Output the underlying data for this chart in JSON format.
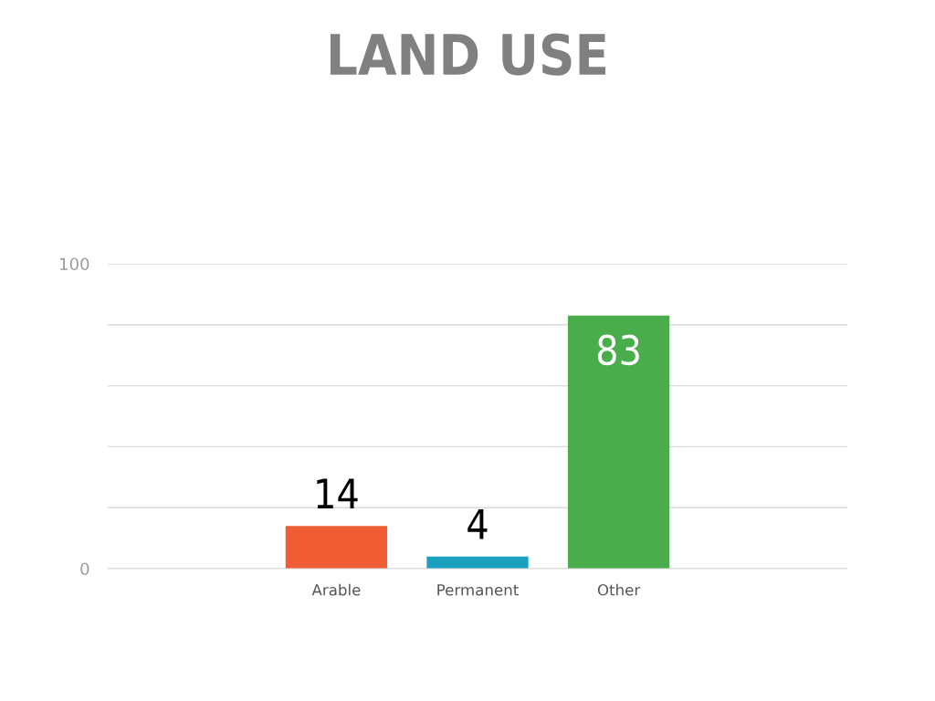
{
  "chart_data": {
    "type": "bar",
    "title": "LAND USE",
    "categories": [
      null,
      "Arable",
      "Permanent",
      "Other",
      null
    ],
    "values": [
      null,
      14,
      4,
      83,
      null
    ],
    "colors": [
      "#f05c33",
      "#f05c33",
      "#1aa1bf",
      "#4aad4b",
      "#4aad4b"
    ],
    "ylim": [
      0,
      100
    ],
    "yticks": [
      0,
      {
        "value": 20,
        "label": null
      },
      {
        "value": 40,
        "label": null
      },
      {
        "value": 60,
        "label": null
      },
      {
        "value": 80,
        "label": null
      },
      100
    ],
    "grid": "y",
    "data_labels": true
  }
}
